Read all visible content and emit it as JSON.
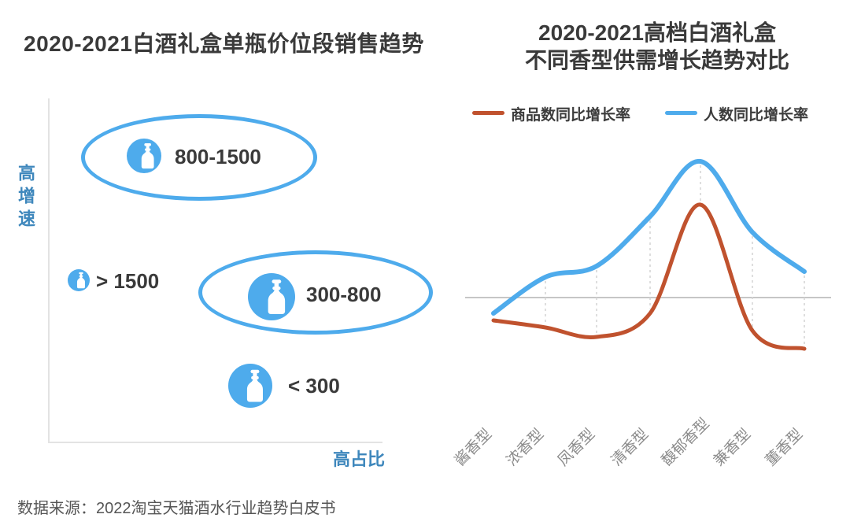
{
  "colors": {
    "sky_blue": "#4eabec",
    "brick_red": "#c0522e",
    "axis_label_blue": "#3e87bc",
    "title_dark": "#3a3a3a",
    "category_gray": "#8c8c8c",
    "zero_line_gray": "#c6c6c6",
    "axis_line_gray": "#e3e3e3"
  },
  "left_chart": {
    "title": "2020-2021白酒礼盒单瓶价位段销售趋势",
    "y_axis_label": "高增速",
    "x_axis_label": "高占比",
    "segments": [
      {
        "label": "800-1500",
        "encircled": true,
        "icon": "wine-bottle-icon",
        "size": "medium"
      },
      {
        "label": "> 1500",
        "encircled": false,
        "icon": "wine-bottle-icon",
        "size": "small"
      },
      {
        "label": "300-800",
        "encircled": true,
        "icon": "wine-bottle-icon",
        "size": "large"
      },
      {
        "label": "< 300",
        "encircled": false,
        "icon": "wine-bottle-icon",
        "size": "large"
      }
    ]
  },
  "right_chart": {
    "title_line1": "2020-2021高档白酒礼盒",
    "title_line2": "不同香型供需增长趋势对比",
    "legend": [
      {
        "label": "商品数同比增长率",
        "color": "#c0522e"
      },
      {
        "label": "人数同比增长率",
        "color": "#4eabec"
      }
    ]
  },
  "chart_data": {
    "type": "line",
    "title": "2020-2021高档白酒礼盒不同香型供需增长趋势对比",
    "categories": [
      "酱香型",
      "浓香型",
      "凤香型",
      "清香型",
      "馥郁香型",
      "兼香型",
      "董香型"
    ],
    "series": [
      {
        "name": "商品数同比增长率",
        "color": "#c0522e",
        "values": [
          -29,
          -38,
          -50,
          -20,
          118,
          -42,
          -65
        ]
      },
      {
        "name": "人数同比增长率",
        "color": "#4eabec",
        "values": [
          -20,
          26,
          40,
          103,
          173,
          83,
          33
        ]
      }
    ],
    "baseline": 0,
    "units": "relative YoY growth (axis unlabeled)",
    "ylim": [
      -90,
      190
    ],
    "legend_position": "top",
    "grid": "dashed vertical connectors between the two series at each category; gray zero line"
  },
  "footer": {
    "source_note": "数据来源：2022淘宝天猫酒水行业趋势白皮书"
  }
}
